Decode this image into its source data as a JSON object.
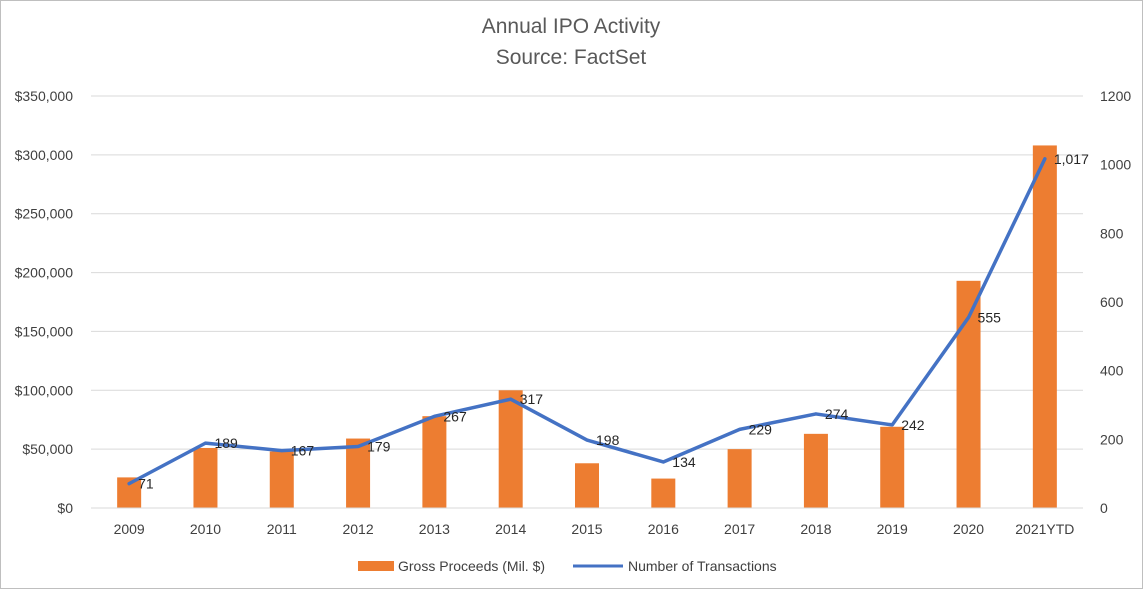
{
  "chart_data": {
    "type": "bar+line",
    "title": "Annual IPO Activity",
    "subtitle": "Source: FactSet",
    "categories": [
      "2009",
      "2010",
      "2011",
      "2012",
      "2013",
      "2014",
      "2015",
      "2016",
      "2017",
      "2018",
      "2019",
      "2020",
      "2021YTD"
    ],
    "series": [
      {
        "name": "Gross Proceeds (Mil. $)",
        "type": "bar",
        "axis": "left",
        "color": "#ED7D31",
        "values": [
          26000,
          51000,
          48000,
          59000,
          78000,
          100000,
          38000,
          25000,
          50000,
          63000,
          69000,
          193000,
          308000
        ]
      },
      {
        "name": "Number of Transactions",
        "type": "line",
        "axis": "right",
        "color": "#4472C4",
        "values": [
          71,
          189,
          167,
          179,
          267,
          317,
          198,
          134,
          229,
          274,
          242,
          555,
          1017
        ],
        "labels": [
          "71",
          "189",
          "167",
          "179",
          "267",
          "317",
          "198",
          "134",
          "229",
          "274",
          "242",
          "555",
          "1,017"
        ]
      }
    ],
    "y_left": {
      "min": 0,
      "max": 350000,
      "ticks": [
        0,
        50000,
        100000,
        150000,
        200000,
        250000,
        300000,
        350000
      ],
      "tick_labels": [
        "$0",
        "$50,000",
        "$100,000",
        "$150,000",
        "$200,000",
        "$250,000",
        "$300,000",
        "$350,000"
      ]
    },
    "y_right": {
      "min": 0,
      "max": 1200,
      "ticks": [
        0,
        200,
        400,
        600,
        800,
        1000,
        1200
      ],
      "tick_labels": [
        "0",
        "200",
        "400",
        "600",
        "800",
        "1000",
        "1200"
      ]
    },
    "grid": true,
    "legend_position": "bottom"
  }
}
